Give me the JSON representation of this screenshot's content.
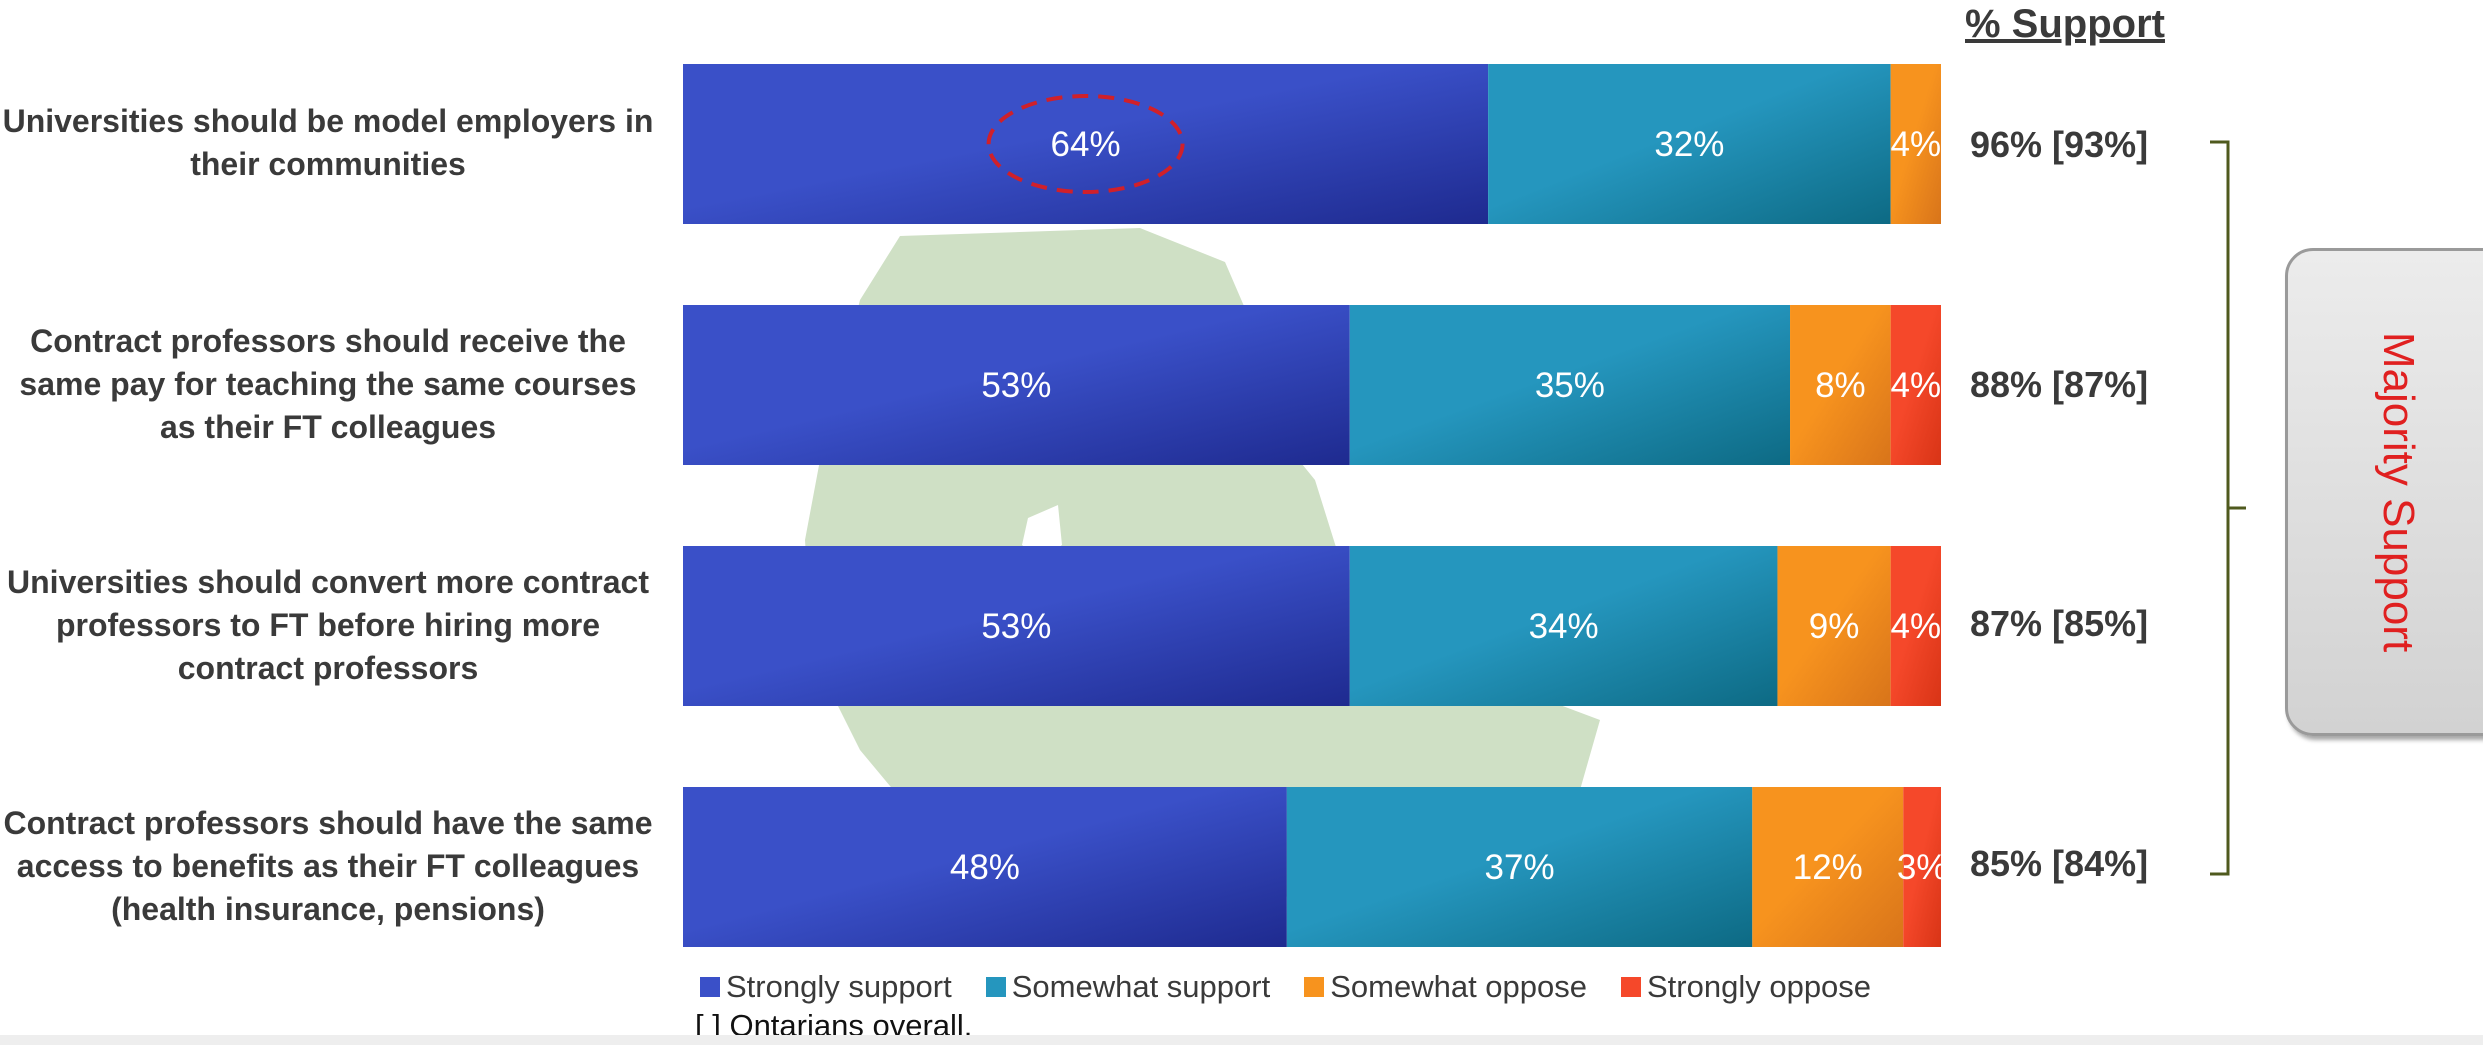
{
  "chart_data": {
    "type": "bar",
    "orientation": "horizontal",
    "stacked": true,
    "categories": [
      "Universities should be model employers in their communities",
      "Contract professors should receive the same pay for teaching the same courses as their FT colleagues",
      "Universities should convert more contract professors to FT before hiring more contract professors",
      "Contract professors should have the same access to benefits as their FT colleagues (health insurance, pensions)"
    ],
    "series": [
      {
        "name": "Strongly support",
        "color": "#3a50c8",
        "values": [
          64,
          53,
          53,
          48
        ],
        "labels": [
          "64%",
          "53%",
          "53%",
          "48%"
        ]
      },
      {
        "name": "Somewhat support",
        "color": "#2596be",
        "values": [
          32,
          35,
          34,
          37
        ],
        "labels": [
          "32%",
          "35%",
          "34%",
          "37%"
        ]
      },
      {
        "name": "Somewhat oppose",
        "color": "#f7931e",
        "values": [
          4,
          8,
          9,
          12
        ],
        "labels": [
          "4%",
          "8%",
          "9%",
          "12%"
        ]
      },
      {
        "name": "Strongly oppose",
        "color": "#f5482a",
        "values": [
          0,
          4,
          4,
          3
        ],
        "labels": [
          "",
          "4%",
          "4%",
          "3%"
        ]
      }
    ],
    "support_header": "% Support",
    "support_values": [
      "96% [93%]",
      "88% [87%]",
      "87% [85%]",
      "85% [84%]"
    ],
    "footnote": "[ ] Ontarians overall.",
    "annotation": "Majority Support",
    "legend_position": "bottom"
  },
  "colors": {
    "text": "#3a3a3a",
    "annotation": "#e02020",
    "bracket": "#4f5a1e",
    "map": "#cfe0c5",
    "circle": "#d0202a"
  }
}
